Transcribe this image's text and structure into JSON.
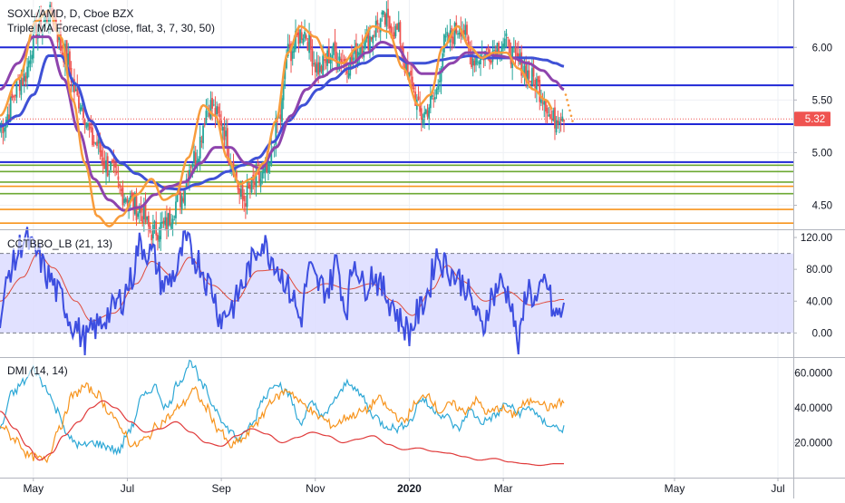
{
  "header": {
    "symbol_line": "SOXL/AMD, D, Cboe BZX",
    "indicator_line": "Triple MA Forecast (close, flat, 3, 7, 30, 50)"
  },
  "colors": {
    "up": "#26a69a",
    "down": "#ef5350",
    "ma_fast": "#f89c3c",
    "ma_mid": "#8e44ad",
    "ma_slow": "#3f51d6",
    "hline_blue": "#1f27d6",
    "hline_green": "#6ca832",
    "hline_orange": "#f7941d",
    "cci_line": "#3d4ee0",
    "cci_signal": "#e04a3b",
    "cci_band": "#dcdcff",
    "dmi_plus": "#f7941d",
    "dmi_minus": "#2ea8d6",
    "dmi_adx": "#e03a3a",
    "price_badge": "#ef5350"
  },
  "chart_data": [
    {
      "type": "candlestick",
      "name": "price",
      "title": "SOXL/AMD, D, Cboe BZX",
      "ylim": [
        4.28,
        6.45
      ],
      "y_ticks": [
        "6.00",
        "5.50",
        "5.00",
        "4.50"
      ],
      "last_price": "5.32",
      "last_value": 5.32,
      "horizontal_levels": [
        {
          "value": 6.0,
          "color": "blue",
          "x_start": "Apr"
        },
        {
          "value": 5.64,
          "color": "blue",
          "x_start": "Apr"
        },
        {
          "value": 5.27,
          "color": "blue",
          "x_start": "Apr"
        },
        {
          "value": 4.91,
          "color": "blue",
          "x_start": "Apr"
        },
        {
          "value": 4.88,
          "color": "green",
          "x_start": "Apr"
        },
        {
          "value": 4.82,
          "color": "green",
          "x_start": "Apr"
        },
        {
          "value": 4.72,
          "color": "green",
          "x_start": "Apr"
        },
        {
          "value": 4.68,
          "color": "orange",
          "x_start": "Apr"
        },
        {
          "value": 4.61,
          "color": "green",
          "x_start": "Apr"
        },
        {
          "value": 4.46,
          "color": "orange",
          "x_start": "Apr"
        },
        {
          "value": 4.33,
          "color": "orange",
          "x_start": "Apr"
        }
      ],
      "x_ticks": [
        "May",
        "Jul",
        "Sep",
        "Nov",
        "2020",
        "Mar",
        "May",
        "Jul"
      ],
      "ma_forecast": "flat"
    },
    {
      "type": "line",
      "name": "cci",
      "title": "CCTBBO_LB (21, 13)",
      "ylim": [
        -28,
        128
      ],
      "y_ticks": [
        "120.00",
        "80.00",
        "40.00",
        "0.00"
      ],
      "band": [
        0,
        100
      ],
      "midline": 50,
      "series": [
        {
          "key": "cci",
          "color_key": "cci_line"
        },
        {
          "key": "signal",
          "color_key": "cci_signal"
        }
      ]
    },
    {
      "type": "line",
      "name": "dmi",
      "title": "DMI (14, 14)",
      "ylim": [
        0,
        68
      ],
      "y_ticks": [
        "60.0000",
        "40.0000",
        "20.0000"
      ],
      "series": [
        {
          "key": "plus_di",
          "color_key": "dmi_plus"
        },
        {
          "key": "minus_di",
          "color_key": "dmi_minus"
        },
        {
          "key": "adx",
          "color_key": "dmi_adx"
        }
      ]
    }
  ],
  "price_anchors": [
    [
      0,
      5.25
    ],
    [
      15,
      5.7
    ],
    [
      25,
      6.2
    ],
    [
      34,
      6.3
    ],
    [
      42,
      5.95
    ],
    [
      52,
      5.5
    ],
    [
      62,
      5.1
    ],
    [
      72,
      4.85
    ],
    [
      82,
      4.6
    ],
    [
      92,
      4.45
    ],
    [
      100,
      4.25
    ],
    [
      108,
      4.3
    ],
    [
      118,
      4.55
    ],
    [
      128,
      4.95
    ],
    [
      138,
      5.45
    ],
    [
      146,
      5.3
    ],
    [
      152,
      4.95
    ],
    [
      160,
      4.55
    ],
    [
      168,
      4.7
    ],
    [
      176,
      4.8
    ],
    [
      184,
      5.3
    ],
    [
      190,
      5.95
    ],
    [
      200,
      6.15
    ],
    [
      210,
      5.8
    ],
    [
      220,
      5.95
    ],
    [
      230,
      5.85
    ],
    [
      240,
      6.05
    ],
    [
      252,
      6.25
    ],
    [
      262,
      6.15
    ],
    [
      270,
      5.7
    ],
    [
      278,
      5.35
    ],
    [
      286,
      5.5
    ],
    [
      294,
      6.05
    ],
    [
      304,
      6.2
    ],
    [
      312,
      5.9
    ],
    [
      322,
      5.95
    ],
    [
      332,
      6.05
    ],
    [
      342,
      5.85
    ],
    [
      352,
      5.7
    ],
    [
      358,
      5.55
    ],
    [
      364,
      5.3
    ],
    [
      370,
      5.38
    ]
  ],
  "cci_anchors": [
    [
      0,
      25
    ],
    [
      8,
      85
    ],
    [
      16,
      118
    ],
    [
      24,
      100
    ],
    [
      32,
      70
    ],
    [
      40,
      45
    ],
    [
      48,
      12
    ],
    [
      56,
      -8
    ],
    [
      64,
      8
    ],
    [
      72,
      25
    ],
    [
      80,
      42
    ],
    [
      86,
      65
    ],
    [
      92,
      110
    ],
    [
      100,
      100
    ],
    [
      108,
      60
    ],
    [
      116,
      75
    ],
    [
      122,
      112
    ],
    [
      130,
      92
    ],
    [
      138,
      62
    ],
    [
      146,
      20
    ],
    [
      154,
      35
    ],
    [
      160,
      60
    ],
    [
      166,
      88
    ],
    [
      172,
      115
    ],
    [
      180,
      95
    ],
    [
      186,
      72
    ],
    [
      192,
      50
    ],
    [
      198,
      18
    ],
    [
      204,
      78
    ],
    [
      210,
      60
    ],
    [
      216,
      55
    ],
    [
      222,
      88
    ],
    [
      228,
      32
    ],
    [
      234,
      92
    ],
    [
      240,
      58
    ],
    [
      246,
      75
    ],
    [
      252,
      55
    ],
    [
      258,
      40
    ],
    [
      264,
      15
    ],
    [
      270,
      2
    ],
    [
      276,
      25
    ],
    [
      282,
      50
    ],
    [
      288,
      98
    ],
    [
      294,
      85
    ],
    [
      300,
      72
    ],
    [
      306,
      62
    ],
    [
      312,
      35
    ],
    [
      318,
      5
    ],
    [
      324,
      45
    ],
    [
      330,
      62
    ],
    [
      336,
      48
    ],
    [
      342,
      -15
    ],
    [
      348,
      58
    ],
    [
      354,
      38
    ],
    [
      360,
      65
    ],
    [
      366,
      20
    ],
    [
      370,
      25
    ]
  ],
  "signal_anchors": [
    [
      0,
      40
    ],
    [
      15,
      70
    ],
    [
      25,
      100
    ],
    [
      35,
      82
    ],
    [
      50,
      40
    ],
    [
      60,
      15
    ],
    [
      75,
      25
    ],
    [
      90,
      62
    ],
    [
      100,
      90
    ],
    [
      115,
      70
    ],
    [
      125,
      95
    ],
    [
      140,
      60
    ],
    [
      155,
      40
    ],
    [
      170,
      78
    ],
    [
      185,
      80
    ],
    [
      200,
      50
    ],
    [
      215,
      62
    ],
    [
      230,
      55
    ],
    [
      245,
      62
    ],
    [
      260,
      40
    ],
    [
      272,
      22
    ],
    [
      285,
      55
    ],
    [
      295,
      85
    ],
    [
      305,
      65
    ],
    [
      320,
      40
    ],
    [
      335,
      52
    ],
    [
      350,
      35
    ],
    [
      365,
      40
    ],
    [
      370,
      42
    ]
  ],
  "plus_anchors": [
    [
      0,
      30
    ],
    [
      10,
      22
    ],
    [
      20,
      12
    ],
    [
      30,
      10
    ],
    [
      40,
      30
    ],
    [
      48,
      47
    ],
    [
      56,
      52
    ],
    [
      64,
      48
    ],
    [
      72,
      38
    ],
    [
      80,
      28
    ],
    [
      88,
      18
    ],
    [
      96,
      22
    ],
    [
      104,
      30
    ],
    [
      112,
      35
    ],
    [
      120,
      42
    ],
    [
      128,
      50
    ],
    [
      136,
      40
    ],
    [
      144,
      28
    ],
    [
      152,
      18
    ],
    [
      160,
      22
    ],
    [
      170,
      32
    ],
    [
      180,
      45
    ],
    [
      190,
      50
    ],
    [
      200,
      42
    ],
    [
      210,
      35
    ],
    [
      220,
      30
    ],
    [
      230,
      35
    ],
    [
      240,
      38
    ],
    [
      250,
      45
    ],
    [
      258,
      38
    ],
    [
      266,
      32
    ],
    [
      274,
      42
    ],
    [
      282,
      48
    ],
    [
      290,
      38
    ],
    [
      298,
      42
    ],
    [
      306,
      38
    ],
    [
      314,
      44
    ],
    [
      322,
      37
    ],
    [
      330,
      40
    ],
    [
      338,
      36
    ],
    [
      346,
      42
    ],
    [
      354,
      45
    ],
    [
      362,
      40
    ],
    [
      370,
      43
    ]
  ],
  "minus_anchors": [
    [
      0,
      28
    ],
    [
      8,
      48
    ],
    [
      16,
      55
    ],
    [
      22,
      62
    ],
    [
      30,
      52
    ],
    [
      38,
      38
    ],
    [
      46,
      22
    ],
    [
      54,
      18
    ],
    [
      62,
      20
    ],
    [
      70,
      18
    ],
    [
      78,
      15
    ],
    [
      86,
      28
    ],
    [
      94,
      46
    ],
    [
      102,
      52
    ],
    [
      110,
      40
    ],
    [
      118,
      55
    ],
    [
      126,
      66
    ],
    [
      134,
      52
    ],
    [
      142,
      40
    ],
    [
      150,
      28
    ],
    [
      158,
      22
    ],
    [
      166,
      30
    ],
    [
      174,
      46
    ],
    [
      182,
      55
    ],
    [
      190,
      48
    ],
    [
      198,
      32
    ],
    [
      206,
      42
    ],
    [
      214,
      35
    ],
    [
      222,
      46
    ],
    [
      230,
      55
    ],
    [
      238,
      47
    ],
    [
      246,
      36
    ],
    [
      254,
      30
    ],
    [
      262,
      28
    ],
    [
      270,
      32
    ],
    [
      278,
      45
    ],
    [
      286,
      39
    ],
    [
      294,
      35
    ],
    [
      302,
      28
    ],
    [
      310,
      38
    ],
    [
      318,
      32
    ],
    [
      326,
      35
    ],
    [
      334,
      42
    ],
    [
      342,
      37
    ],
    [
      350,
      40
    ],
    [
      358,
      32
    ],
    [
      366,
      29
    ],
    [
      370,
      28
    ]
  ],
  "adx_anchors": [
    [
      0,
      38
    ],
    [
      10,
      28
    ],
    [
      18,
      18
    ],
    [
      26,
      10
    ],
    [
      34,
      14
    ],
    [
      42,
      24
    ],
    [
      52,
      32
    ],
    [
      60,
      40
    ],
    [
      68,
      44
    ],
    [
      76,
      40
    ],
    [
      86,
      32
    ],
    [
      96,
      26
    ],
    [
      106,
      28
    ],
    [
      116,
      32
    ],
    [
      126,
      26
    ],
    [
      136,
      20
    ],
    [
      146,
      18
    ],
    [
      156,
      24
    ],
    [
      166,
      28
    ],
    [
      176,
      25
    ],
    [
      186,
      20
    ],
    [
      196,
      23
    ],
    [
      206,
      26
    ],
    [
      216,
      24
    ],
    [
      226,
      20
    ],
    [
      236,
      22
    ],
    [
      246,
      24
    ],
    [
      256,
      19
    ],
    [
      266,
      16
    ],
    [
      276,
      17
    ],
    [
      286,
      15
    ],
    [
      296,
      14
    ],
    [
      306,
      12
    ],
    [
      316,
      10
    ],
    [
      326,
      11
    ],
    [
      336,
      9
    ],
    [
      346,
      8
    ],
    [
      356,
      7
    ],
    [
      366,
      8
    ],
    [
      370,
      8
    ]
  ],
  "ma_fast_anchors": [
    [
      0,
      5.35
    ],
    [
      12,
      5.7
    ],
    [
      24,
      6.25
    ],
    [
      32,
      6.35
    ],
    [
      40,
      6.1
    ],
    [
      48,
      5.5
    ],
    [
      56,
      4.9
    ],
    [
      64,
      4.4
    ],
    [
      72,
      4.3
    ],
    [
      80,
      4.4
    ],
    [
      90,
      4.6
    ],
    [
      100,
      4.75
    ],
    [
      108,
      4.55
    ],
    [
      116,
      4.6
    ],
    [
      124,
      4.95
    ],
    [
      134,
      5.45
    ],
    [
      142,
      5.35
    ],
    [
      150,
      4.95
    ],
    [
      158,
      4.7
    ],
    [
      166,
      4.75
    ],
    [
      174,
      4.9
    ],
    [
      182,
      5.3
    ],
    [
      190,
      5.95
    ],
    [
      198,
      6.2
    ],
    [
      208,
      6.1
    ],
    [
      216,
      5.9
    ],
    [
      226,
      5.85
    ],
    [
      236,
      6.0
    ],
    [
      246,
      6.2
    ],
    [
      256,
      6.15
    ],
    [
      266,
      5.8
    ],
    [
      276,
      5.45
    ],
    [
      284,
      5.55
    ],
    [
      292,
      6.0
    ],
    [
      302,
      6.2
    ],
    [
      310,
      6.0
    ],
    [
      318,
      5.9
    ],
    [
      326,
      5.95
    ],
    [
      334,
      5.95
    ],
    [
      342,
      5.8
    ],
    [
      352,
      5.6
    ],
    [
      360,
      5.5
    ],
    [
      366,
      5.38
    ],
    [
      372,
      5.32
    ]
  ],
  "ma_mid_anchors": [
    [
      0,
      5.6
    ],
    [
      12,
      5.85
    ],
    [
      22,
      6.1
    ],
    [
      32,
      6.1
    ],
    [
      42,
      5.7
    ],
    [
      52,
      5.2
    ],
    [
      62,
      4.75
    ],
    [
      72,
      4.55
    ],
    [
      82,
      4.45
    ],
    [
      92,
      4.48
    ],
    [
      102,
      4.6
    ],
    [
      112,
      4.68
    ],
    [
      122,
      4.72
    ],
    [
      132,
      4.9
    ],
    [
      142,
      5.05
    ],
    [
      152,
      5.05
    ],
    [
      162,
      4.9
    ],
    [
      172,
      4.85
    ],
    [
      182,
      5.05
    ],
    [
      192,
      5.35
    ],
    [
      202,
      5.6
    ],
    [
      212,
      5.72
    ],
    [
      222,
      5.8
    ],
    [
      232,
      5.85
    ],
    [
      242,
      5.95
    ],
    [
      252,
      6.05
    ],
    [
      262,
      6.0
    ],
    [
      270,
      5.85
    ],
    [
      278,
      5.75
    ],
    [
      288,
      5.75
    ],
    [
      298,
      5.85
    ],
    [
      308,
      5.95
    ],
    [
      318,
      5.95
    ],
    [
      328,
      5.92
    ],
    [
      338,
      5.9
    ],
    [
      348,
      5.85
    ],
    [
      358,
      5.78
    ],
    [
      366,
      5.68
    ],
    [
      372,
      5.6
    ]
  ],
  "ma_slow_anchors": [
    [
      0,
      5.25
    ],
    [
      12,
      5.35
    ],
    [
      22,
      5.55
    ],
    [
      32,
      5.92
    ],
    [
      40,
      5.92
    ],
    [
      50,
      5.65
    ],
    [
      60,
      5.3
    ],
    [
      70,
      5.05
    ],
    [
      80,
      4.9
    ],
    [
      90,
      4.8
    ],
    [
      100,
      4.72
    ],
    [
      110,
      4.66
    ],
    [
      120,
      4.65
    ],
    [
      130,
      4.7
    ],
    [
      140,
      4.75
    ],
    [
      150,
      4.82
    ],
    [
      160,
      4.88
    ],
    [
      170,
      4.95
    ],
    [
      180,
      5.1
    ],
    [
      190,
      5.3
    ],
    [
      200,
      5.45
    ],
    [
      210,
      5.6
    ],
    [
      220,
      5.7
    ],
    [
      230,
      5.8
    ],
    [
      240,
      5.85
    ],
    [
      250,
      5.92
    ],
    [
      260,
      5.92
    ],
    [
      270,
      5.85
    ],
    [
      280,
      5.85
    ],
    [
      290,
      5.88
    ],
    [
      300,
      5.9
    ],
    [
      310,
      5.92
    ],
    [
      320,
      5.9
    ],
    [
      330,
      5.9
    ],
    [
      340,
      5.9
    ],
    [
      350,
      5.9
    ],
    [
      360,
      5.88
    ],
    [
      366,
      5.85
    ],
    [
      372,
      5.82
    ]
  ]
}
